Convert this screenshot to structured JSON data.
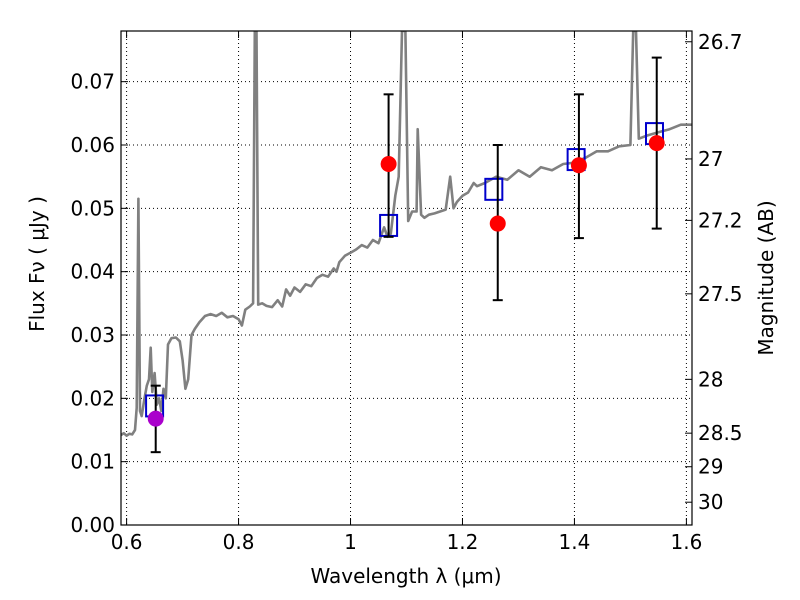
{
  "chart_data": {
    "type": "scatter",
    "xlabel": "Wavelength  λ (μm)",
    "ylabel": "Flux  Fν  ( μJy )",
    "ylabel_right": "Magnitude (AB)",
    "xlim": [
      0.59,
      1.61
    ],
    "ylim": [
      0.0,
      0.078
    ],
    "x_ticks": [
      0.6,
      0.8,
      1.0,
      1.2,
      1.4,
      1.6
    ],
    "x_tick_labels": [
      "0.6",
      "0.8",
      "1",
      "1.2",
      "1.4",
      "1.6"
    ],
    "y_ticks": [
      0.0,
      0.01,
      0.02,
      0.03,
      0.04,
      0.05,
      0.06,
      0.07
    ],
    "y_tick_labels": [
      "0.00",
      "0.01",
      "0.02",
      "0.03",
      "0.04",
      "0.05",
      "0.06",
      "0.07"
    ],
    "right_ticks": [
      {
        "label": "26.7",
        "flux": 0.0763
      },
      {
        "label": "27",
        "flux": 0.0578
      },
      {
        "label": "27.2",
        "flux": 0.0481
      },
      {
        "label": "27.5",
        "flux": 0.0365
      },
      {
        "label": "28",
        "flux": 0.023
      },
      {
        "label": "28.5",
        "flux": 0.0145
      },
      {
        "label": "29",
        "flux": 0.0092
      },
      {
        "label": "30",
        "flux": 0.0036
      }
    ],
    "grid": true,
    "colors": {
      "spectrum": "#808080",
      "model_box": "#0000cc",
      "observed_point": "#ff0000",
      "highlight_point": "#aa00cc",
      "error_bar": "#000000"
    },
    "series": [
      {
        "style": "line",
        "color": "#808080",
        "points": [
          [
            0.59,
            0.0142
          ],
          [
            0.595,
            0.0145
          ],
          [
            0.6,
            0.0141
          ],
          [
            0.605,
            0.0144
          ],
          [
            0.61,
            0.0143
          ],
          [
            0.615,
            0.015
          ],
          [
            0.618,
            0.0185
          ],
          [
            0.621,
            0.0515
          ],
          [
            0.624,
            0.018
          ],
          [
            0.627,
            0.0172
          ],
          [
            0.632,
            0.02
          ],
          [
            0.636,
            0.022
          ],
          [
            0.64,
            0.023
          ],
          [
            0.643,
            0.028
          ],
          [
            0.646,
            0.021
          ],
          [
            0.65,
            0.024
          ],
          [
            0.654,
            0.019
          ],
          [
            0.658,
            0.02
          ],
          [
            0.662,
            0.018
          ],
          [
            0.666,
            0.0215
          ],
          [
            0.67,
            0.02
          ],
          [
            0.674,
            0.0285
          ],
          [
            0.68,
            0.0295
          ],
          [
            0.688,
            0.0296
          ],
          [
            0.695,
            0.029
          ],
          [
            0.7,
            0.026
          ],
          [
            0.705,
            0.0215
          ],
          [
            0.71,
            0.023
          ],
          [
            0.716,
            0.03
          ],
          [
            0.722,
            0.031
          ],
          [
            0.73,
            0.032
          ],
          [
            0.74,
            0.033
          ],
          [
            0.75,
            0.0333
          ],
          [
            0.76,
            0.033
          ],
          [
            0.77,
            0.0335
          ],
          [
            0.78,
            0.0328
          ],
          [
            0.79,
            0.033
          ],
          [
            0.8,
            0.0325
          ],
          [
            0.806,
            0.0315
          ],
          [
            0.812,
            0.034
          ],
          [
            0.82,
            0.0345
          ],
          [
            0.826,
            0.035
          ],
          [
            0.829,
            0.078
          ],
          [
            0.832,
            0.078
          ],
          [
            0.835,
            0.0348
          ],
          [
            0.842,
            0.035
          ],
          [
            0.85,
            0.0346
          ],
          [
            0.86,
            0.0344
          ],
          [
            0.87,
            0.0355
          ],
          [
            0.878,
            0.0345
          ],
          [
            0.885,
            0.0372
          ],
          [
            0.892,
            0.0362
          ],
          [
            0.9,
            0.0375
          ],
          [
            0.91,
            0.0368
          ],
          [
            0.92,
            0.038
          ],
          [
            0.93,
            0.0377
          ],
          [
            0.94,
            0.039
          ],
          [
            0.95,
            0.0395
          ],
          [
            0.96,
            0.0392
          ],
          [
            0.97,
            0.0405
          ],
          [
            0.975,
            0.04
          ],
          [
            0.98,
            0.0415
          ],
          [
            0.99,
            0.0425
          ],
          [
            1.0,
            0.043
          ],
          [
            1.01,
            0.0435
          ],
          [
            1.02,
            0.0442
          ],
          [
            1.03,
            0.0438
          ],
          [
            1.04,
            0.045
          ],
          [
            1.05,
            0.0445
          ],
          [
            1.06,
            0.047
          ],
          [
            1.066,
            0.0455
          ],
          [
            1.072,
            0.046
          ],
          [
            1.08,
            0.052
          ],
          [
            1.086,
            0.055
          ],
          [
            1.092,
            0.078
          ],
          [
            1.098,
            0.078
          ],
          [
            1.103,
            0.048
          ],
          [
            1.11,
            0.0495
          ],
          [
            1.118,
            0.0495
          ],
          [
            1.12,
            0.0625
          ],
          [
            1.126,
            0.049
          ],
          [
            1.132,
            0.0485
          ],
          [
            1.14,
            0.049
          ],
          [
            1.15,
            0.0492
          ],
          [
            1.16,
            0.0495
          ],
          [
            1.17,
            0.0498
          ],
          [
            1.178,
            0.055
          ],
          [
            1.184,
            0.05
          ],
          [
            1.19,
            0.051
          ],
          [
            1.2,
            0.052
          ],
          [
            1.21,
            0.0525
          ],
          [
            1.22,
            0.054
          ],
          [
            1.226,
            0.0535
          ],
          [
            1.24,
            0.054
          ],
          [
            1.26,
            0.055
          ],
          [
            1.28,
            0.0545
          ],
          [
            1.3,
            0.056
          ],
          [
            1.32,
            0.055
          ],
          [
            1.34,
            0.0565
          ],
          [
            1.36,
            0.056
          ],
          [
            1.38,
            0.057
          ],
          [
            1.4,
            0.0572
          ],
          [
            1.42,
            0.058
          ],
          [
            1.44,
            0.059
          ],
          [
            1.46,
            0.059
          ],
          [
            1.48,
            0.0598
          ],
          [
            1.5,
            0.06
          ],
          [
            1.505,
            0.078
          ],
          [
            1.51,
            0.078
          ],
          [
            1.515,
            0.061
          ],
          [
            1.53,
            0.0615
          ],
          [
            1.55,
            0.062
          ],
          [
            1.57,
            0.0625
          ],
          [
            1.59,
            0.0632
          ],
          [
            1.61,
            0.0632
          ]
        ]
      },
      {
        "style": "open-square",
        "color": "#0000cc",
        "points": [
          [
            0.65,
            0.0188
          ],
          [
            1.068,
            0.0473
          ],
          [
            1.256,
            0.053
          ],
          [
            1.403,
            0.0577
          ],
          [
            1.543,
            0.0618
          ]
        ]
      },
      {
        "style": "filled-circle",
        "color": "#ff0000",
        "points": [
          [
            1.068,
            0.057
          ],
          [
            1.263,
            0.0476
          ],
          [
            1.408,
            0.0568
          ],
          [
            1.547,
            0.0603
          ]
        ]
      },
      {
        "style": "filled-circle",
        "color": "#aa00cc",
        "points": [
          [
            0.652,
            0.0168
          ]
        ]
      }
    ],
    "error_bars": [
      {
        "x": 0.652,
        "low": 0.0115,
        "high": 0.022
      },
      {
        "x": 1.068,
        "low": 0.0455,
        "high": 0.068
      },
      {
        "x": 1.263,
        "low": 0.0355,
        "high": 0.06
      },
      {
        "x": 1.408,
        "low": 0.0453,
        "high": 0.068
      },
      {
        "x": 1.547,
        "low": 0.0468,
        "high": 0.0738
      }
    ]
  }
}
